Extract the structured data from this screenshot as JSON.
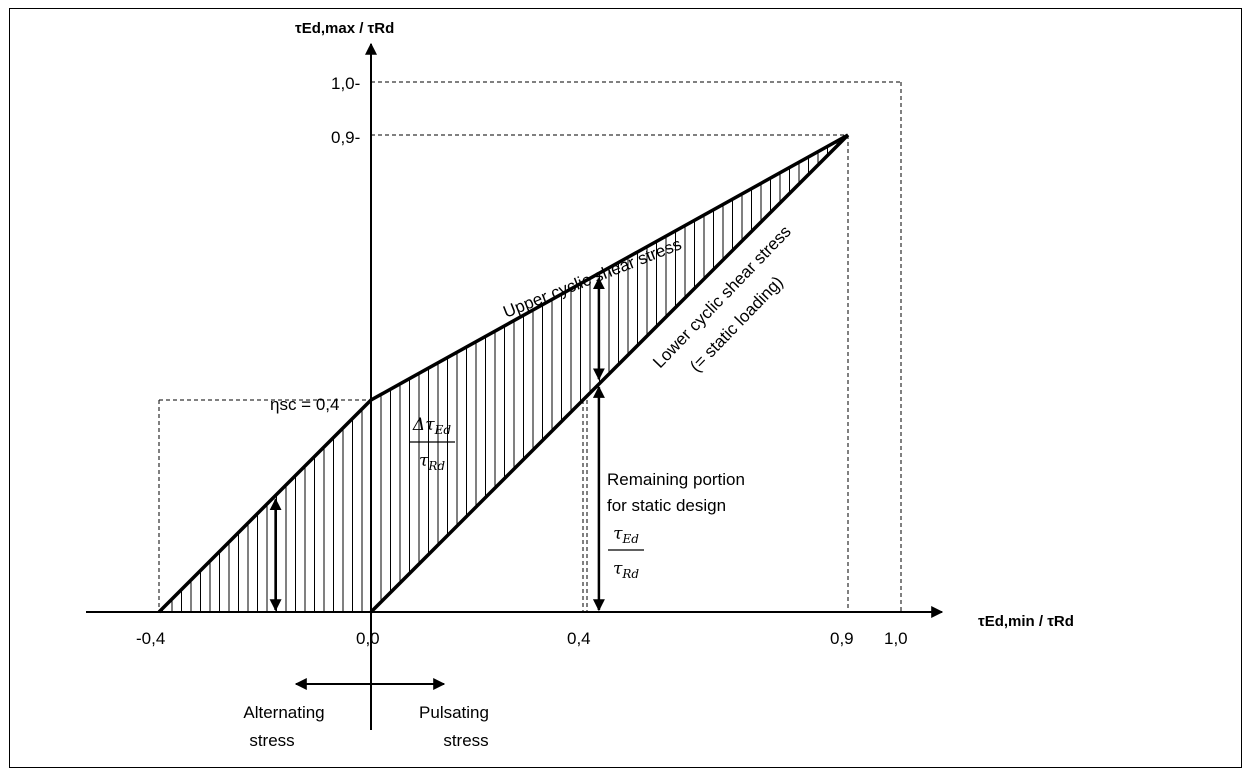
{
  "chart_data": {
    "type": "area",
    "title": "",
    "xlabel": "τEd,min / τRd",
    "ylabel": "τEd,max / τRd",
    "xlim": [
      -0.5,
      1.1
    ],
    "ylim": [
      0,
      1.1
    ],
    "x_ticks": [
      "-0,4",
      "0,0",
      "0,4",
      "0,9",
      "1,0"
    ],
    "y_ticks": [
      "1,0-",
      "0,9-"
    ],
    "eta_label": "ηsc = 0,4",
    "series": [
      {
        "name": "Upper cyclic shear stress",
        "x": [
          -0.4,
          0.0,
          0.9
        ],
        "y": [
          0.0,
          0.4,
          0.9
        ]
      },
      {
        "name": "Lower cyclic shear stress (= static loading)",
        "x": [
          0.0,
          0.9
        ],
        "y": [
          0.0,
          0.9
        ]
      }
    ],
    "annotations": {
      "upper_line": "Upper cyclic shear stress",
      "lower_line_1": "Lower cyclic shear stress",
      "lower_line_2": "(= static loading)",
      "delta_num": "Δτ",
      "delta_num_sub": "Ed",
      "delta_den": "τ",
      "delta_den_sub": "Rd",
      "remaining_1": "Remaining portion",
      "remaining_2": "for static design",
      "tau_num": "τ",
      "tau_num_sub": "Ed",
      "tau_den": "τ",
      "tau_den_sub": "Rd",
      "alternating_1": "Alternating",
      "alternating_2": "stress",
      "pulsating_1": "Pulsating",
      "pulsating_2": "stress"
    }
  }
}
